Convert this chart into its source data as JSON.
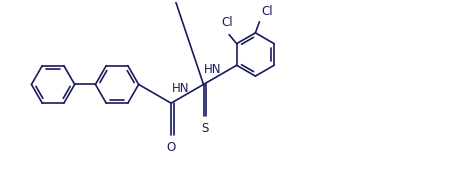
{
  "bg_color": "#ffffff",
  "line_color": "#1a1a5e",
  "label_color": "#1a1a5e",
  "atom_labels": {
    "O": "O",
    "S": "S",
    "NH1": "HN",
    "NH2": "HN",
    "Cl1": "Cl",
    "Cl2": "Cl"
  },
  "font_size": 8.5,
  "lw": 1.2,
  "r": 22,
  "figw": 4.53,
  "figh": 1.89,
  "dpi": 100
}
